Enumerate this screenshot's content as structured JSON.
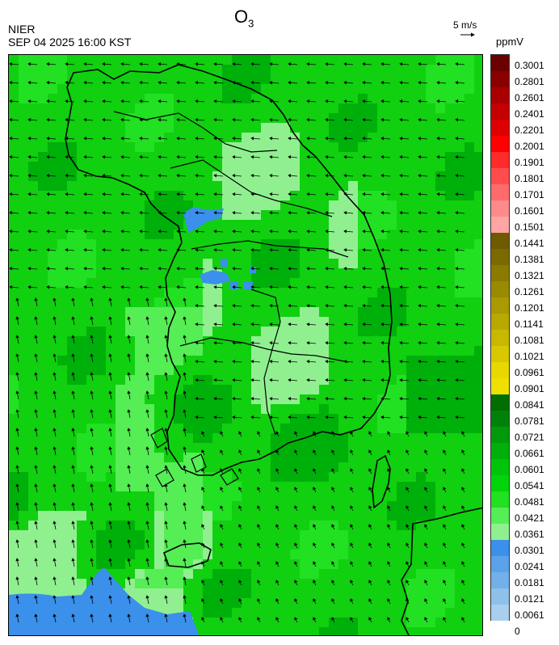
{
  "header": {
    "source": "NIER",
    "timestamp": "SEP 04 2025 16:00 KST",
    "title_species": "O",
    "title_sub": "3",
    "wind_reference": "5 m/s",
    "unit": "ppmV"
  },
  "colorbar": {
    "labels": [
      "0.3001",
      "0.2801",
      "0.2601",
      "0.2401",
      "0.2201",
      "0.2001",
      "0.1901",
      "0.1801",
      "0.1701",
      "0.1601",
      "0.1501",
      "0.1441",
      "0.1381",
      "0.1321",
      "0.1261",
      "0.1201",
      "0.1141",
      "0.1081",
      "0.1021",
      "0.0961",
      "0.0901",
      "0.0841",
      "0.0781",
      "0.0721",
      "0.0661",
      "0.0601",
      "0.0541",
      "0.0481",
      "0.0421",
      "0.0361",
      "0.0301",
      "0.0241",
      "0.0181",
      "0.0121",
      "0.0061",
      "0"
    ],
    "colors": [
      "#6b0000",
      "#8a0000",
      "#a80000",
      "#c40000",
      "#dd0000",
      "#ff0000",
      "#ff2a2a",
      "#ff4c4c",
      "#ff6b6b",
      "#ff8a8a",
      "#ffa5a5",
      "#6e5a00",
      "#7a6a00",
      "#8a7a00",
      "#9a8a00",
      "#aa9a00",
      "#b8a800",
      "#c8b800",
      "#d8c800",
      "#e8d800",
      "#f0e000",
      "#006e00",
      "#00820a",
      "#009a0a",
      "#00b00a",
      "#00c40a",
      "#00d40a",
      "#22e022",
      "#55ee55",
      "#90f090",
      "#3a90ea",
      "#5aa2ea",
      "#72b0ea",
      "#8ec0ea",
      "#a8d0ee"
    ]
  },
  "map": {
    "background_color": "#10d010",
    "low_ozone_color": "#3a90ea",
    "boundary_color": "#000000"
  }
}
